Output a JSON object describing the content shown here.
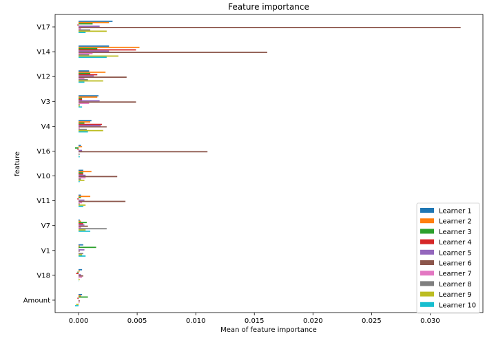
{
  "chart_data": {
    "type": "bar",
    "orientation": "horizontal",
    "title": "Feature importance",
    "xlabel": "Mean of feature importance",
    "ylabel": "feature",
    "xlim": [
      -0.002,
      0.0345
    ],
    "xticks": [
      0.0,
      0.005,
      0.01,
      0.015,
      0.02,
      0.025,
      0.03
    ],
    "xtick_labels": [
      "0.000",
      "0.005",
      "0.010",
      "0.015",
      "0.020",
      "0.025",
      "0.030"
    ],
    "grid": false,
    "legend_position": "lower right",
    "categories": [
      "V17",
      "V14",
      "V12",
      "V3",
      "V4",
      "V16",
      "V10",
      "V11",
      "V7",
      "V1",
      "V18",
      "Amount"
    ],
    "series": [
      {
        "name": "Learner 1",
        "color": "#1f77b4",
        "values": [
          0.0029,
          0.0026,
          0.0009,
          0.0017,
          0.0011,
          0.0002,
          0.0004,
          0.0002,
          0.0001,
          0.0004,
          0.0003,
          0.0003
        ]
      },
      {
        "name": "Learner 2",
        "color": "#ff7f0e",
        "values": [
          0.0026,
          0.0052,
          0.0023,
          0.0016,
          0.001,
          0.0003,
          0.0011,
          0.001,
          0.0002,
          0.0001,
          0.0001,
          0.0002
        ]
      },
      {
        "name": "Learner 3",
        "color": "#2ca02c",
        "values": [
          0.0012,
          0.0016,
          0.001,
          0.0003,
          0.0005,
          -0.0003,
          0.0004,
          0.0002,
          0.0007,
          0.0015,
          -0.0001,
          0.0008
        ]
      },
      {
        "name": "Learner 4",
        "color": "#d62728",
        "values": [
          -0.0001,
          0.0049,
          0.0016,
          0.0003,
          0.002,
          -0.0001,
          0.0004,
          -0.0001,
          0.0004,
          0.0,
          -0.0002,
          -0.0001
        ]
      },
      {
        "name": "Learner 5",
        "color": "#9467bd",
        "values": [
          0.0018,
          0.0026,
          0.0013,
          0.0018,
          0.0019,
          0.0003,
          0.0006,
          0.0005,
          0.0005,
          0.0005,
          0.0002,
          0.0
        ]
      },
      {
        "name": "Learner 6",
        "color": "#8c564b",
        "values": [
          0.0326,
          0.0161,
          0.0041,
          0.0049,
          0.0024,
          0.011,
          0.0033,
          0.004,
          0.0008,
          0.0001,
          0.0004,
          0.0001
        ]
      },
      {
        "name": "Learner 7",
        "color": "#e377c2",
        "values": [
          0.0002,
          0.0012,
          0.0005,
          0.0009,
          0.0001,
          0.0,
          0.0006,
          0.0003,
          0.0002,
          0.0,
          0.0003,
          0.0001
        ]
      },
      {
        "name": "Learner 8",
        "color": "#7f7f7f",
        "values": [
          0.001,
          0.0009,
          0.0008,
          0.0001,
          0.0007,
          0.0001,
          0.0002,
          0.0001,
          0.0024,
          0.0004,
          0.0,
          0.0
        ]
      },
      {
        "name": "Learner 9",
        "color": "#bcbd22",
        "values": [
          0.0024,
          0.0034,
          0.0021,
          0.0001,
          0.0021,
          0.0,
          0.0005,
          0.0006,
          0.0006,
          0.0003,
          0.0001,
          -0.0002
        ]
      },
      {
        "name": "Learner 10",
        "color": "#17becf",
        "values": [
          0.0006,
          0.0024,
          0.0005,
          0.0003,
          0.0008,
          0.0001,
          0.0001,
          0.0004,
          0.001,
          0.0006,
          0.0,
          -0.0003
        ]
      }
    ]
  }
}
